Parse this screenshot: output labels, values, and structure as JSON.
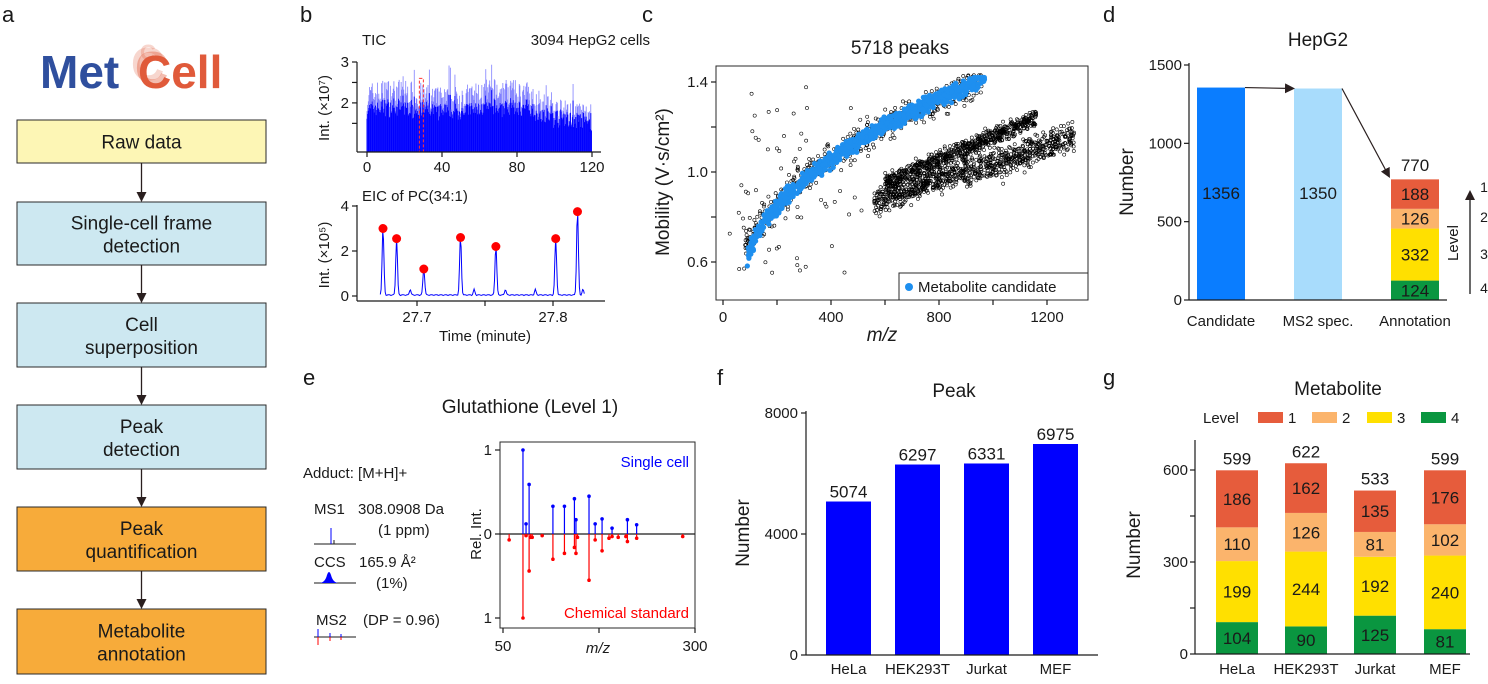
{
  "panels": {
    "a": {
      "label": "a",
      "logo": {
        "part1": "Met",
        "part2": "Cell",
        "color1": "#2f4f9e",
        "color2": "#e05a3a"
      },
      "steps": [
        {
          "lines": [
            "Raw data"
          ],
          "color": "#fdf6b5"
        },
        {
          "lines": [
            "Single-cell frame",
            "detection"
          ],
          "color": "#cde8f1"
        },
        {
          "lines": [
            "Cell",
            "superposition"
          ],
          "color": "#cde8f1"
        },
        {
          "lines": [
            "Peak",
            "detection"
          ],
          "color": "#cde8f1"
        },
        {
          "lines": [
            "Peak",
            "quantification"
          ],
          "color": "#f7ab3a"
        },
        {
          "lines": [
            "Metabolite",
            "annotation"
          ],
          "color": "#f7ab3a"
        }
      ]
    },
    "b": {
      "label": "b"
    },
    "c": {
      "label": "c"
    },
    "d": {
      "label": "d"
    },
    "e": {
      "label": "e",
      "adduct": "Adduct: [M+H]+",
      "ms1_label": "MS1",
      "ms1_value": "308.0908 Da",
      "ms1_error": "(1 ppm)",
      "ccs_label": "CCS",
      "ccs_value": "165.9 Å²",
      "ccs_error": "(1%)",
      "ms2_label": "MS2",
      "ms2_value": "(DP = 0.96)"
    },
    "f": {
      "label": "f"
    },
    "g": {
      "label": "g"
    }
  },
  "chart_data": [
    {
      "id": "b-tic",
      "type": "area",
      "title": "TIC",
      "annotation": "3094 HepG2 cells",
      "xlabel": "",
      "ylabel": "Int. (×10⁷)",
      "xlim": [
        0,
        120
      ],
      "ylim": [
        0.8,
        3
      ],
      "xticks": [
        0,
        40,
        80,
        120
      ],
      "yticks": [
        2,
        3
      ],
      "highlight_x": 29,
      "color": "#0000ff",
      "note": "dense spectrum of ~3094 cell peaks, intensities ~1.2–3.0 ×10⁷"
    },
    {
      "id": "b-eic",
      "type": "line",
      "title": "EIC of PC(34:1)",
      "xlabel": "Time (minute)",
      "ylabel": "Int. (×10⁵)",
      "xlim": [
        27.665,
        27.835
      ],
      "ylim": [
        0,
        4
      ],
      "xticks": [
        27.7,
        27.8
      ],
      "yticks": [
        0,
        2,
        4
      ],
      "peaks_x": [
        27.675,
        27.685,
        27.705,
        27.732,
        27.758,
        27.802,
        27.818
      ],
      "peaks_y": [
        3.0,
        2.55,
        1.2,
        2.6,
        2.2,
        2.55,
        3.75
      ],
      "line_color": "#0000ff",
      "marker_color": "#ff0000"
    },
    {
      "id": "c-scatter",
      "type": "scatter",
      "title": "5718 peaks",
      "xlabel": "m/z",
      "ylabel": "Mobility (V·s/cm²)",
      "xlim": [
        -20,
        1360
      ],
      "ylim": [
        0.45,
        1.47
      ],
      "xticks": [
        0,
        400,
        800,
        1200
      ],
      "yticks": [
        0.6,
        1.0,
        1.4
      ],
      "legend": {
        "label": "Metabolite candidate",
        "position": "bottom-right",
        "color": "#1e8fef"
      },
      "series": [
        {
          "name": "All peaks",
          "count": 5718,
          "color": "#000000",
          "style": "open-circle"
        },
        {
          "name": "Metabolite candidate",
          "color": "#1e8fef",
          "style": "filled-circle"
        }
      ]
    },
    {
      "id": "d-bar",
      "type": "bar",
      "title": "HepG2",
      "xlabel": "",
      "ylabel": "Number",
      "ylim": [
        0,
        1500
      ],
      "yticks": [
        0,
        500,
        1000,
        1500
      ],
      "categories": [
        "Candidate",
        "MS2 spec.",
        "Annotation"
      ],
      "values": [
        1356,
        1350,
        770
      ],
      "colors": [
        "#0a7dff",
        "#a8dcfc",
        null
      ],
      "annotation_stack": {
        "levels": [
          "4",
          "3",
          "2",
          "1"
        ],
        "values": [
          124,
          332,
          126,
          188
        ],
        "colors": [
          "#0a9640",
          "#ffe000",
          "#fbb46c",
          "#e65c3c"
        ],
        "total": 770
      },
      "level_axis_label": "Level",
      "level_ticks": [
        "1",
        "2",
        "3",
        "4"
      ]
    },
    {
      "id": "e-mirror",
      "type": "bar",
      "title": "Glutathione (Level 1)",
      "xlabel": "m/z",
      "ylabel": "Rel. Int.",
      "xlim": [
        50,
        300
      ],
      "ylim": [
        -1,
        1
      ],
      "xticks": [
        50,
        300
      ],
      "yticks_labels": [
        "1",
        "0",
        "1"
      ],
      "top_label": "Single cell",
      "bottom_label": "Chemical standard",
      "top_color": "#0000ff",
      "bottom_color": "#ff0000",
      "top_series": {
        "mz": [
          76,
          80,
          84,
          115,
          130,
          143,
          145,
          162,
          170,
          179,
          192,
          212,
          224
        ],
        "intensity": [
          1.0,
          0.12,
          0.59,
          0.33,
          0.33,
          0.42,
          0.17,
          0.45,
          0.12,
          0.18,
          0.07,
          0.17,
          0.11
        ]
      },
      "bottom_series": {
        "mz": [
          58,
          76,
          80,
          84,
          86,
          88,
          101,
          115,
          130,
          143,
          145,
          147,
          162,
          170,
          179,
          188,
          192,
          200,
          210,
          212,
          224,
          284
        ],
        "intensity": [
          0.07,
          1.0,
          0.02,
          0.44,
          0.04,
          0.04,
          0.02,
          0.3,
          0.23,
          0.16,
          0.23,
          0.04,
          0.55,
          0.07,
          0.2,
          0.05,
          0.03,
          0.04,
          0.03,
          0.09,
          0.05,
          0.03
        ]
      }
    },
    {
      "id": "f-bar",
      "type": "bar",
      "title": "Peak",
      "xlabel": "",
      "ylabel": "Number",
      "ylim": [
        0,
        8000
      ],
      "yticks": [
        0,
        4000,
        8000
      ],
      "categories": [
        "HeLa",
        "HEK293T",
        "Jurkat",
        "MEF"
      ],
      "values": [
        5074,
        6297,
        6331,
        6975
      ],
      "color": "#0000ff"
    },
    {
      "id": "g-stacked",
      "type": "bar",
      "title": "Metabolite",
      "xlabel": "",
      "ylabel": "Number",
      "ylim": [
        0,
        690
      ],
      "yticks": [
        0,
        300,
        600
      ],
      "legend_title": "Level",
      "legend_position": "top",
      "categories": [
        "HeLa",
        "HEK293T",
        "Jurkat",
        "MEF"
      ],
      "totals": [
        599,
        622,
        533,
        599
      ],
      "series": [
        {
          "name": "4",
          "color": "#0a9640",
          "values": [
            104,
            90,
            125,
            81
          ]
        },
        {
          "name": "3",
          "color": "#ffe000",
          "values": [
            199,
            244,
            192,
            240
          ]
        },
        {
          "name": "2",
          "color": "#fbb46c",
          "values": [
            110,
            126,
            81,
            102
          ]
        },
        {
          "name": "1",
          "color": "#e65c3c",
          "values": [
            186,
            162,
            135,
            176
          ]
        }
      ],
      "legend_order": [
        "1",
        "2",
        "3",
        "4"
      ]
    }
  ]
}
